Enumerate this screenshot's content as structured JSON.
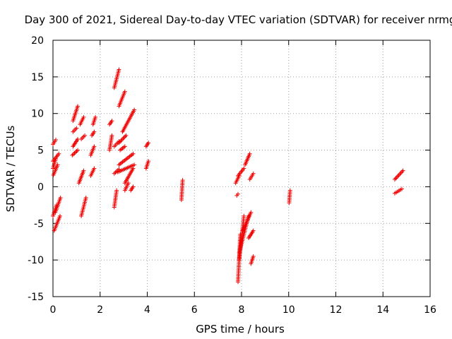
{
  "chart_data": {
    "type": "scatter",
    "title": "Day 300 of 2021, Sidereal Day-to-day VTEC variation (SDTVAR) for receiver nrmg",
    "xlabel": "GPS time / hours",
    "ylabel": "SDTVAR / TECUs",
    "xlim": [
      0,
      16
    ],
    "ylim": [
      -15,
      20
    ],
    "xticks": [
      "0",
      "2",
      "4",
      "6",
      "8",
      "10",
      "12",
      "14",
      "16"
    ],
    "yticks": [
      "-15",
      "-10",
      "-5",
      "0",
      "5",
      "10",
      "15",
      "20"
    ],
    "grid": true,
    "marker": "+",
    "color": "#ee0000",
    "arcs": [
      [
        0.0,
        0.12,
        2.5,
        3.8
      ],
      [
        0.0,
        0.12,
        5.8,
        6.4
      ],
      [
        0.02,
        0.2,
        1.6,
        3.0
      ],
      [
        0.0,
        0.15,
        -4.0,
        -2.5
      ],
      [
        0.05,
        0.3,
        -6.0,
        -4.0
      ],
      [
        0.1,
        0.32,
        -3.5,
        -1.5
      ],
      [
        0.0,
        0.25,
        3.5,
        4.5
      ],
      [
        0.85,
        1.05,
        9.0,
        11.0
      ],
      [
        0.85,
        1.0,
        7.5,
        8.0
      ],
      [
        0.85,
        1.05,
        5.5,
        6.5
      ],
      [
        0.82,
        1.05,
        4.3,
        5.0
      ],
      [
        1.2,
        1.4,
        -4.0,
        -1.5
      ],
      [
        1.1,
        1.3,
        0.5,
        2.2
      ],
      [
        1.15,
        1.3,
        8.5,
        9.5
      ],
      [
        1.2,
        1.35,
        6.5,
        7.0
      ],
      [
        1.6,
        1.75,
        4.3,
        5.5
      ],
      [
        1.7,
        1.8,
        8.5,
        9.5
      ],
      [
        1.65,
        1.75,
        7.0,
        7.5
      ],
      [
        1.6,
        1.75,
        1.5,
        2.5
      ],
      [
        2.4,
        2.5,
        8.5,
        9.0
      ],
      [
        2.4,
        2.5,
        5.0,
        7.0
      ],
      [
        2.6,
        2.8,
        13.5,
        16.0
      ],
      [
        2.6,
        2.8,
        5.5,
        6.2
      ],
      [
        2.6,
        2.8,
        1.8,
        2.4
      ],
      [
        2.6,
        2.7,
        -2.8,
        -0.5
      ],
      [
        2.8,
        3.05,
        11.0,
        13.0
      ],
      [
        2.95,
        3.45,
        7.5,
        10.5
      ],
      [
        2.8,
        3.1,
        6.0,
        7.0
      ],
      [
        2.85,
        3.05,
        5.0,
        5.5
      ],
      [
        2.8,
        3.4,
        3.0,
        4.5
      ],
      [
        2.75,
        3.45,
        2.0,
        3.0
      ],
      [
        3.05,
        3.4,
        0.5,
        2.5
      ],
      [
        3.05,
        3.2,
        -0.5,
        0.5
      ],
      [
        3.3,
        3.4,
        -0.5,
        0.0
      ],
      [
        3.95,
        4.05,
        5.5,
        6.0
      ],
      [
        3.95,
        4.05,
        2.5,
        3.5
      ],
      [
        5.45,
        5.5,
        -1.8,
        0.9
      ],
      [
        7.75,
        7.9,
        0.5,
        1.5
      ],
      [
        7.8,
        7.85,
        -1.2,
        -1.0
      ],
      [
        7.85,
        8.1,
        1.5,
        2.5
      ],
      [
        8.15,
        8.35,
        3.0,
        4.5
      ],
      [
        8.35,
        8.5,
        1.0,
        1.8
      ],
      [
        7.85,
        7.95,
        -13.0,
        -6.5
      ],
      [
        7.9,
        8.1,
        -10.0,
        -4.0
      ],
      [
        7.9,
        8.3,
        -9.0,
        -4.0
      ],
      [
        8.05,
        8.4,
        -6.0,
        -3.5
      ],
      [
        8.3,
        8.5,
        -7.0,
        -6.0
      ],
      [
        8.4,
        8.5,
        -10.5,
        -9.5
      ],
      [
        10.02,
        10.06,
        -2.2,
        -0.5
      ],
      [
        14.5,
        14.85,
        1.0,
        2.2
      ],
      [
        14.5,
        14.8,
        -0.9,
        -0.3
      ]
    ]
  }
}
